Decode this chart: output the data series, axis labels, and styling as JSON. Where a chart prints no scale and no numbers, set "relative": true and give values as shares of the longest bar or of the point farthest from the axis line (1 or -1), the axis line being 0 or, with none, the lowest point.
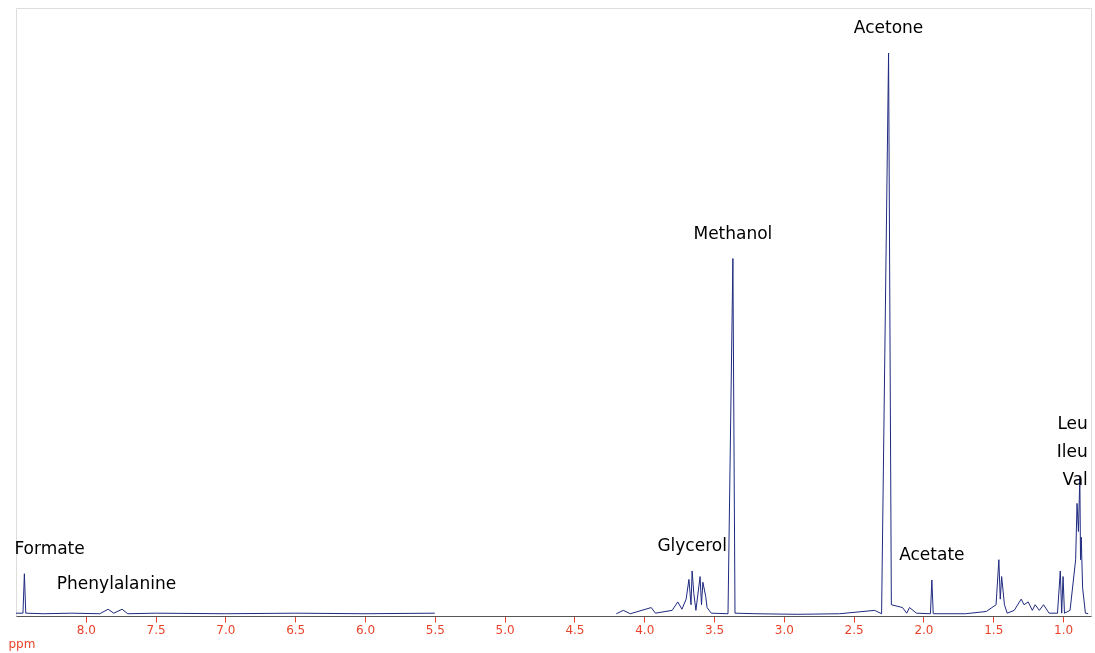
{
  "chart_data": {
    "type": "line",
    "relative": true,
    "xlabel": "ppm",
    "x": [
      8.5,
      8.45,
      8.44,
      8.43,
      8.3,
      8.1,
      7.9,
      7.84,
      7.8,
      7.74,
      7.7,
      7.5,
      7.0,
      6.5,
      6.0,
      5.5,
      5.0,
      4.2,
      4.15,
      4.1,
      3.95,
      3.92,
      3.8,
      3.76,
      3.73,
      3.7,
      3.68,
      3.665,
      3.657,
      3.645,
      3.63,
      3.6,
      3.59,
      3.58,
      3.56,
      3.55,
      3.52,
      3.4,
      3.365,
      3.35,
      3.2,
      2.9,
      2.6,
      2.35,
      2.3,
      2.25,
      2.23,
      2.15,
      2.12,
      2.1,
      2.05,
      1.95,
      1.94,
      1.93,
      1.7,
      1.55,
      1.48,
      1.46,
      1.45,
      1.44,
      1.42,
      1.4,
      1.35,
      1.3,
      1.28,
      1.25,
      1.22,
      1.2,
      1.17,
      1.14,
      1.1,
      1.04,
      1.02,
      1.01,
      1.0,
      0.99,
      0.95,
      0.91,
      0.9,
      0.89,
      0.88,
      0.875,
      0.87,
      0.86,
      0.84,
      0.82
    ],
    "series": [
      {
        "color": "#1f2a80",
        "values": [
          0.005,
          0.005,
          0.075,
          0.005,
          0.004,
          0.005,
          0.004,
          0.012,
          0.005,
          0.012,
          0.004,
          0.005,
          0.004,
          0.005,
          0.004,
          0.005,
          null,
          0.004,
          0.01,
          0.004,
          0.015,
          0.005,
          0.01,
          0.025,
          0.012,
          0.03,
          0.065,
          0.02,
          0.08,
          0.04,
          0.01,
          0.07,
          0.02,
          0.06,
          0.035,
          0.015,
          0.005,
          0.004,
          0.635,
          0.005,
          0.004,
          0.003,
          0.004,
          0.01,
          0.004,
          1.0,
          0.02,
          0.015,
          0.005,
          0.015,
          0.005,
          0.004,
          0.064,
          0.004,
          0.004,
          0.008,
          0.02,
          0.1,
          0.03,
          0.07,
          0.02,
          0.005,
          0.01,
          0.03,
          0.02,
          0.025,
          0.01,
          0.02,
          0.01,
          0.02,
          0.005,
          0.005,
          0.08,
          0.005,
          0.07,
          0.005,
          0.01,
          0.1,
          0.2,
          0.15,
          0.247,
          0.1,
          0.14,
          0.05,
          0.005,
          0.004
        ]
      }
    ],
    "xlim": [
      8.5,
      0.8
    ],
    "xticks": [
      {
        "value": 8.0,
        "label": "8.0"
      },
      {
        "value": 7.5,
        "label": "7.5"
      },
      {
        "value": 7.0,
        "label": "7.0"
      },
      {
        "value": 6.5,
        "label": "6.5"
      },
      {
        "value": 6.0,
        "label": "6.0"
      },
      {
        "value": 5.5,
        "label": "5.5"
      },
      {
        "value": 5.0,
        "label": "5.0"
      },
      {
        "value": 4.5,
        "label": "4.5"
      },
      {
        "value": 4.0,
        "label": "4.0"
      },
      {
        "value": 3.5,
        "label": "3.5"
      },
      {
        "value": 3.0,
        "label": "3.0"
      },
      {
        "value": 2.5,
        "label": "2.5"
      },
      {
        "value": 2.0,
        "label": "2.0"
      },
      {
        "value": 1.5,
        "label": "1.5"
      },
      {
        "value": 1.0,
        "label": "1.0"
      }
    ],
    "tick_labels": "x",
    "grid": false,
    "marker": "none",
    "line_style": "solid",
    "annotations": [
      {
        "text": "Formate",
        "x": 8.44,
        "y": 0.075
      },
      {
        "text": "Phenylalanine",
        "x": 7.78,
        "y": 0.012
      },
      {
        "text": "Glycerol",
        "x": 3.657,
        "y": 0.08
      },
      {
        "text": "Methanol",
        "x": 3.365,
        "y": 0.635
      },
      {
        "text": "Acetone",
        "x": 2.25,
        "y": 1.0
      },
      {
        "text": "Acetate",
        "x": 1.94,
        "y": 0.064
      },
      {
        "text": "Leu\nIleu\nVal",
        "x": 0.88,
        "y": 0.247
      }
    ]
  }
}
